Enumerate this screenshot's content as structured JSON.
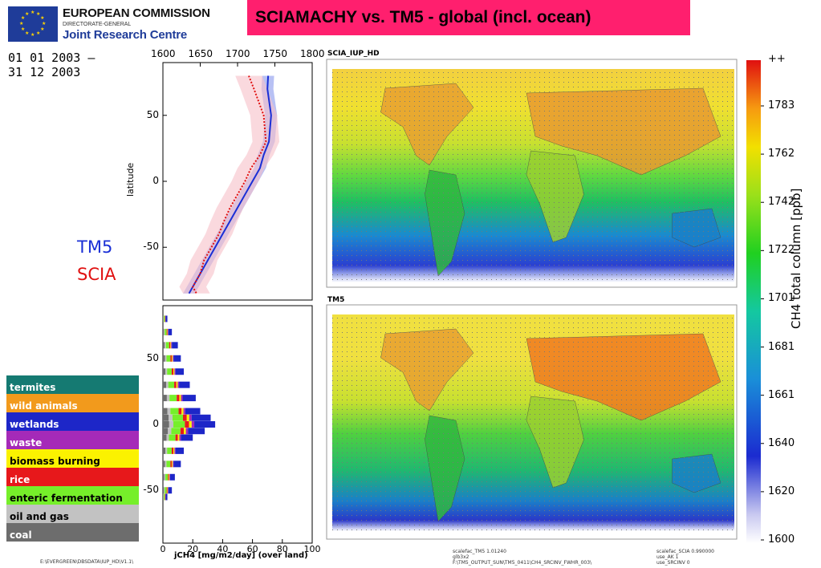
{
  "header": {
    "org_name": "EUROPEAN COMMISSION",
    "org_sub": "DIRECTORATE-GENERAL",
    "org_unit": "Joint Research Centre",
    "title": "SCIAMACHY vs. TM5 - global (incl. ocean)",
    "date_line1": "01 01 2003 –",
    "date_line2": "31 12 2003"
  },
  "profile_legend": {
    "tm5": "TM5",
    "scia": "SCIA"
  },
  "profile_plot": {
    "top_ticks": [
      "1600",
      "1650",
      "1700",
      "1750",
      "1800"
    ],
    "y_ticks": [
      "50",
      "0",
      "-50"
    ],
    "ylabel": "latitude"
  },
  "emission_plot": {
    "y_ticks": [
      "50",
      "0",
      "-50"
    ],
    "x_ticks": [
      "0",
      "20",
      "40",
      "60",
      "80",
      "100"
    ],
    "xlabel": "jCH4 [mg/m2/day] (over land)"
  },
  "sources": [
    {
      "label": "termites",
      "color": "#157a72"
    },
    {
      "label": "wild animals",
      "color": "#f29a1c"
    },
    {
      "label": "wetlands",
      "color": "#1d26c8"
    },
    {
      "label": "waste",
      "color": "#a52ab8"
    },
    {
      "label": "biomass burning",
      "color": "#fbf200"
    },
    {
      "label": "rice",
      "color": "#e7181b"
    },
    {
      "label": "enteric fermentation",
      "color": "#76ef2a"
    },
    {
      "label": "oil and gas",
      "color": "#c2c2c2"
    },
    {
      "label": "coal",
      "color": "#6d6d6d"
    }
  ],
  "maps": {
    "top_title": "SCIA_IUP_HD",
    "bottom_title": "TM5"
  },
  "colorbar": {
    "label": "CH4 total column [ppb]",
    "top_label": "++",
    "ticks": [
      "1783",
      "1762",
      "1742",
      "1722",
      "1701",
      "1681",
      "1661",
      "1640",
      "1620",
      "1600"
    ]
  },
  "footer": {
    "left": "E:\\EVERGREEN\\DBSDATA\\IUP_HD\\V1.1\\",
    "mid1": "scalefac_TM5        1.01240",
    "mid2": "glb3x2",
    "mid3": "F:\\TM5_OUTPUT_SUN\\TM5_0411\\CH4_SRCINV_FWHR_003\\",
    "right1": "scalefac_SCIA        0.990000",
    "right2": "use_AK                1",
    "right3": "use_SRCINV            0"
  },
  "chart_data": [
    {
      "type": "line",
      "xlabel": "",
      "ylabel": "latitude",
      "xlim": [
        1600,
        1800
      ],
      "ylim": [
        -90,
        90
      ],
      "series": [
        {
          "name": "TM5",
          "color": "#1a2fd6",
          "x": [
            1741,
            1740,
            1745,
            1742,
            1735,
            1730,
            1720,
            1710,
            1700,
            1690,
            1680,
            1670,
            1660,
            1650,
            1640,
            1635
          ],
          "y": [
            80,
            70,
            50,
            30,
            20,
            10,
            0,
            -10,
            -20,
            -30,
            -40,
            -50,
            -60,
            -70,
            -80,
            -85
          ]
        },
        {
          "name": "SCIA",
          "color": "#e01010",
          "x": [
            1715,
            1722,
            1735,
            1738,
            1730,
            1718,
            1710,
            1700,
            1690,
            1682,
            1675,
            1665,
            1655,
            1650,
            1640,
            1645
          ],
          "y": [
            80,
            70,
            50,
            30,
            20,
            10,
            0,
            -10,
            -20,
            -30,
            -40,
            -50,
            -60,
            -70,
            -80,
            -85
          ]
        }
      ]
    },
    {
      "type": "area",
      "xlabel": "jCH4 [mg/m2/day] (over land)",
      "xlim": [
        0,
        100
      ],
      "ylim": [
        -90,
        90
      ],
      "y": [
        80,
        70,
        60,
        50,
        40,
        30,
        20,
        10,
        5,
        0,
        -5,
        -10,
        -20,
        -30,
        -40,
        -50,
        -55
      ],
      "total": [
        3,
        6,
        10,
        12,
        14,
        18,
        22,
        25,
        32,
        35,
        28,
        20,
        14,
        12,
        8,
        6,
        3
      ]
    }
  ]
}
